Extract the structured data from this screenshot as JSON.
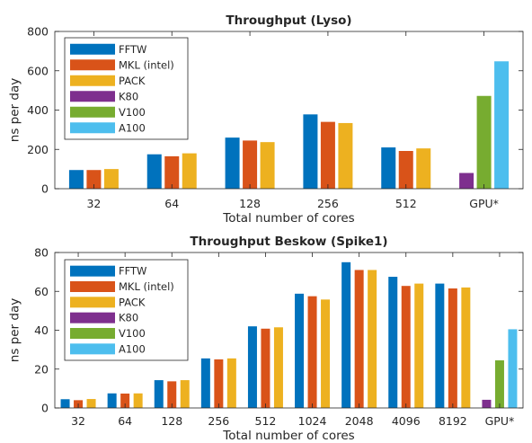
{
  "chart_data": [
    {
      "type": "bar",
      "title": "Throughput (Lyso)",
      "xlabel": "Total number of cores",
      "ylabel": "ns per day",
      "ylim": [
        0,
        800
      ],
      "yticks": [
        0,
        200,
        400,
        600,
        800
      ],
      "categories": [
        "32",
        "64",
        "128",
        "256",
        "512",
        "GPU*"
      ],
      "grid": false,
      "legend_position": "top-left",
      "series": [
        {
          "name": "FFTW",
          "color": "#0072BD",
          "values": [
            95,
            175,
            260,
            378,
            210,
            null
          ]
        },
        {
          "name": "MKL (intel)",
          "color": "#D95319",
          "values": [
            95,
            165,
            245,
            340,
            192,
            null
          ]
        },
        {
          "name": "PACK",
          "color": "#EDB120",
          "values": [
            100,
            180,
            237,
            334,
            205,
            null
          ]
        },
        {
          "name": "K80",
          "color": "#7E2F8E",
          "values": [
            null,
            null,
            null,
            null,
            null,
            80
          ]
        },
        {
          "name": "V100",
          "color": "#77AC30",
          "values": [
            null,
            null,
            null,
            null,
            null,
            472
          ]
        },
        {
          "name": "A100",
          "color": "#4DBEEE",
          "values": [
            null,
            null,
            null,
            null,
            null,
            648
          ]
        }
      ]
    },
    {
      "type": "bar",
      "title": "Throughput Beskow (Spike1)",
      "xlabel": "Total number of cores",
      "ylabel": "ns per day",
      "ylim": [
        0,
        80
      ],
      "yticks": [
        0,
        20,
        40,
        60,
        80
      ],
      "categories": [
        "32",
        "64",
        "128",
        "256",
        "512",
        "1024",
        "2048",
        "4096",
        "8192",
        "GPU*"
      ],
      "grid": false,
      "legend_position": "top-left",
      "series": [
        {
          "name": "FFTW",
          "color": "#0072BD",
          "values": [
            4.5,
            7.5,
            14.3,
            25.5,
            42,
            58.8,
            75,
            67.5,
            64,
            null
          ]
        },
        {
          "name": "MKL (intel)",
          "color": "#D95319",
          "values": [
            4,
            7.4,
            13.7,
            25,
            40.8,
            57.5,
            71,
            62.8,
            61.5,
            null
          ]
        },
        {
          "name": "PACK",
          "color": "#EDB120",
          "values": [
            4.6,
            7.5,
            14.3,
            25.5,
            41.5,
            55.8,
            71,
            64,
            62,
            null
          ]
        },
        {
          "name": "K80",
          "color": "#7E2F8E",
          "values": [
            null,
            null,
            null,
            null,
            null,
            null,
            null,
            null,
            null,
            4.2
          ]
        },
        {
          "name": "V100",
          "color": "#77AC30",
          "values": [
            null,
            null,
            null,
            null,
            null,
            null,
            null,
            null,
            null,
            24.5
          ]
        },
        {
          "name": "A100",
          "color": "#4DBEEE",
          "values": [
            null,
            null,
            null,
            null,
            null,
            null,
            null,
            null,
            null,
            40.5
          ]
        }
      ]
    }
  ]
}
